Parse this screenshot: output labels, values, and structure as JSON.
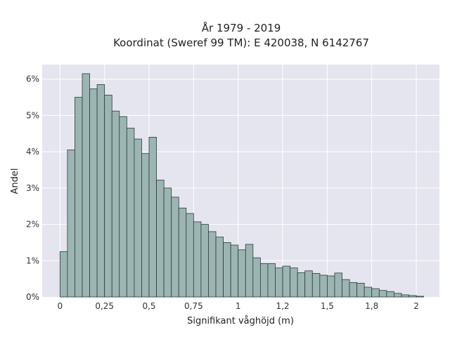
{
  "chart_data": {
    "type": "bar",
    "title": "År 1979 - 2019",
    "subtitle": "Koordinat (Sweref 99 TM): E 420038, N 6142767",
    "xlabel": "Signifikant våghöjd (m)",
    "ylabel": "Andel",
    "grid": true,
    "legend": "none",
    "xlim": [
      -0.1,
      2.13
    ],
    "ylim": [
      0,
      6.4
    ],
    "bin_width": 0.0417,
    "x_ticks": [
      {
        "value": 0,
        "label": "0"
      },
      {
        "value": 0.25,
        "label": "0,25"
      },
      {
        "value": 0.5,
        "label": "0,5"
      },
      {
        "value": 0.75,
        "label": "0,75"
      },
      {
        "value": 1,
        "label": "1"
      },
      {
        "value": 1.25,
        "label": "1,2"
      },
      {
        "value": 1.5,
        "label": "1,5"
      },
      {
        "value": 1.75,
        "label": "1,8"
      },
      {
        "value": 2,
        "label": "2"
      }
    ],
    "y_ticks": [
      {
        "value": 0,
        "label": "0%"
      },
      {
        "value": 1,
        "label": "1%"
      },
      {
        "value": 2,
        "label": "2%"
      },
      {
        "value": 3,
        "label": "3%"
      },
      {
        "value": 4,
        "label": "4%"
      },
      {
        "value": 5,
        "label": "5%"
      },
      {
        "value": 6,
        "label": "6%"
      }
    ],
    "bin_starts": [
      0,
      0.0417,
      0.0833,
      0.125,
      0.1667,
      0.2083,
      0.25,
      0.2917,
      0.3333,
      0.375,
      0.4167,
      0.4583,
      0.5,
      0.5417,
      0.5833,
      0.625,
      0.6667,
      0.7083,
      0.75,
      0.7917,
      0.8333,
      0.875,
      0.9167,
      0.9583,
      1.0,
      1.0417,
      1.0833,
      1.125,
      1.1667,
      1.2083,
      1.25,
      1.2917,
      1.3333,
      1.375,
      1.4167,
      1.4583,
      1.5,
      1.5417,
      1.5833,
      1.625,
      1.6667,
      1.7083,
      1.75,
      1.7917,
      1.8333,
      1.875,
      1.9167,
      1.9583,
      2.0
    ],
    "values": [
      1.25,
      4.05,
      5.5,
      6.15,
      5.73,
      5.85,
      5.56,
      5.12,
      4.97,
      4.65,
      4.35,
      3.95,
      4.4,
      3.22,
      3.0,
      2.75,
      2.45,
      2.3,
      2.07,
      2.0,
      1.8,
      1.65,
      1.5,
      1.43,
      1.3,
      1.45,
      1.08,
      0.92,
      0.92,
      0.8,
      0.85,
      0.8,
      0.67,
      0.72,
      0.65,
      0.6,
      0.58,
      0.66,
      0.48,
      0.4,
      0.38,
      0.27,
      0.23,
      0.18,
      0.15,
      0.1,
      0.06,
      0.04,
      0.02
    ],
    "colors": {
      "bar": "#9cb5b3",
      "bar_edge": "#2b3b3a",
      "plot_bg": "#e5e5ef",
      "grid": "#ffffff"
    }
  }
}
